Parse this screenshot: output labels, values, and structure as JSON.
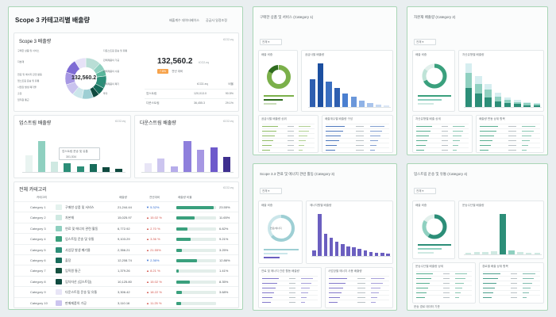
{
  "main": {
    "title": "Scope 3 카테고리별 배출량",
    "header_links": [
      "배출계수 데이터베이스",
      "공급사 일정조정"
    ],
    "overview": {
      "title": "Scope 3 배출량",
      "unit": "tCO2-eq",
      "total": "132,560.2",
      "total_unit": "tCO2-eq",
      "change_badge": "7.8%",
      "change_label": "전년 대비",
      "donut_labels_left": [
        "구매한 상품 및 서비스",
        "자본재",
        "연료 및 에너지 관련 활동",
        "업스트림 운송 및 유통",
        "사업장 발생 폐기물",
        "출장",
        "임직원 통근"
      ],
      "donut_labels_right": [
        "다운스트림 운송 및 유통",
        "판매제품의 가공",
        "판매제품의 사용",
        "판매제품의 폐기",
        "투자"
      ],
      "table_headers": [
        "",
        "tCO2-eq",
        "비율"
      ],
      "table_rows": [
        {
          "label": "업스트림",
          "value": "120,013.0",
          "pct": "90.5%"
        },
        {
          "label": "다운스트림",
          "value": "36,455.3",
          "pct": "29.1%"
        }
      ],
      "donut_colors": [
        "#b9ded6",
        "#8fd0c0",
        "#5ab79c",
        "#2c8e78",
        "#176b5a",
        "#0f4a3f",
        "#9ecfd4",
        "#cbe6ea",
        "#c9c3ee",
        "#a697e3",
        "#7e6bd4",
        "#e6e2f7"
      ],
      "donut_values": [
        12,
        6,
        5,
        10,
        6,
        5,
        9,
        8,
        9,
        10,
        11,
        9
      ]
    },
    "upstream": {
      "title": "업스트림 배출량",
      "unit": "tCO2-eq",
      "tooltip_title": "업스트림 운송 및 유통",
      "tooltip_value": "301,534",
      "values": [
        30,
        55,
        18,
        15,
        10,
        14,
        9,
        6
      ],
      "colors": [
        "#e9f4f1",
        "#8fd0c0",
        "#cfe9e2",
        "#2c8e78",
        "#2c8e78",
        "#176b5a",
        "#0f4a3f",
        "#0f4a3f"
      ]
    },
    "downstream": {
      "title": "다운스트림 배출량",
      "unit": "tCO2-eq",
      "values": [
        8,
        12,
        5,
        28,
        20,
        22,
        14
      ],
      "colors": [
        "#e8e5f6",
        "#ccc5ef",
        "#b6acea",
        "#8e7fdc",
        "#a697e3",
        "#6e5acb",
        "#3e2f8f"
      ]
    },
    "all": {
      "title": "전체 카테고리",
      "unit": "tCO2-eq",
      "columns": [
        "",
        "카테고리",
        "배출량",
        "전년대비",
        "배출량 비율"
      ],
      "rows": [
        {
          "cat": "Category 1",
          "color": "#e4f2ee",
          "name": "구매한 상품 및 서비스",
          "value": "21,244.44",
          "change": "▼ 5.32%",
          "pct": "23.55%",
          "pct_num": 23.55
        },
        {
          "cat": "Category 2",
          "color": "#cfe9e2",
          "name": "자본재",
          "value": "15,025.97",
          "change": "▲ 15.02 %",
          "pct": "11.65%",
          "pct_num": 11.65
        },
        {
          "cat": "Category 3",
          "color": "#8fd0c0",
          "name": "연료 및 에너지 관련 활동",
          "value": "6,772.92",
          "change": "▲ 2.70 %",
          "pct": "6.82%",
          "pct_num": 6.82
        },
        {
          "cat": "Category 4",
          "color": "#3aa07d",
          "name": "업스트림 운송 및 유통",
          "value": "9,103.29",
          "change": "▲ 3.36 %",
          "pct": "9.21%",
          "pct_num": 9.21
        },
        {
          "cat": "Category 5",
          "color": "#2c8e78",
          "name": "사업장 발생 폐기물",
          "value": "2,356.21",
          "change": "▲ 21.55%",
          "pct": "3.25%",
          "pct_num": 3.25
        },
        {
          "cat": "Category 6",
          "color": "#176b5a",
          "name": "출장",
          "value": "12,208.74",
          "change": "▼ 2.36%",
          "pct": "12.86%",
          "pct_num": 12.86
        },
        {
          "cat": "Category 7",
          "color": "#15503f",
          "name": "임직원 통근",
          "value": "1,379.26",
          "change": "▲ 8.21 %",
          "pct": "1.41%",
          "pct_num": 1.41
        },
        {
          "cat": "Category 8",
          "color": "#0f4a3f",
          "name": "임차자산 (업스트림)",
          "value": "10,125.80",
          "change": "▲ 15.02 %",
          "pct": "8.35%",
          "pct_num": 8.35
        },
        {
          "cat": "Category 9",
          "color": "#e8e5f6",
          "name": "다운스트림 운송 및 유통",
          "value": "3,306.42",
          "change": "▲ 18.22 %",
          "pct": "3.68%",
          "pct_num": 3.68
        },
        {
          "cat": "Category 10",
          "color": "#ccc5ef",
          "name": "판매제품의 가공",
          "value": "3,110.16",
          "change": "▲ 11.25 %",
          "pct": "",
          "pct_num": 3.2
        }
      ]
    }
  },
  "cat1": {
    "title": "구매한 상품 및 서비스 (Category 1)",
    "select": "전체",
    "left_title": "배출 비중",
    "chart_title": "공급사별 배출량",
    "left_table_title": "공급사별 배출량 상위",
    "right_table_title": "배출계수별 배출량 구성"
  },
  "cat2": {
    "title": "자본재 배출량 (Category 2)",
    "select": "전체",
    "left_title": "배출 비중",
    "chart_title": "자산유형별 배출량",
    "left_table_title": "자산유형별 배출 상세",
    "right_table_title": "배출량 변동 상위 항목"
  },
  "cat3": {
    "title": "Scope 3.3 연료 및 에너지 관련 활동 (Category 3)",
    "select": "전체",
    "left_title": "배출 비중",
    "donut_label": "연료/에너지",
    "chart_title": "에너지원별 배출량",
    "left_table_title": "연료 및 에너지 관련 활동 배출량",
    "right_table_title": "사업장별 에너지 사용 배출량"
  },
  "cat4": {
    "title": "업스트림 운송 및 유통 (Category 4)",
    "select": "전체",
    "left_title": "배출 비중",
    "chart_title": "운송수단별 배출량",
    "left_table_title": "운송수단별 배출량 상세",
    "right_table_title": "경로별 배출 상위 항목",
    "footnote": "운송 경로 데이터 기준"
  }
}
